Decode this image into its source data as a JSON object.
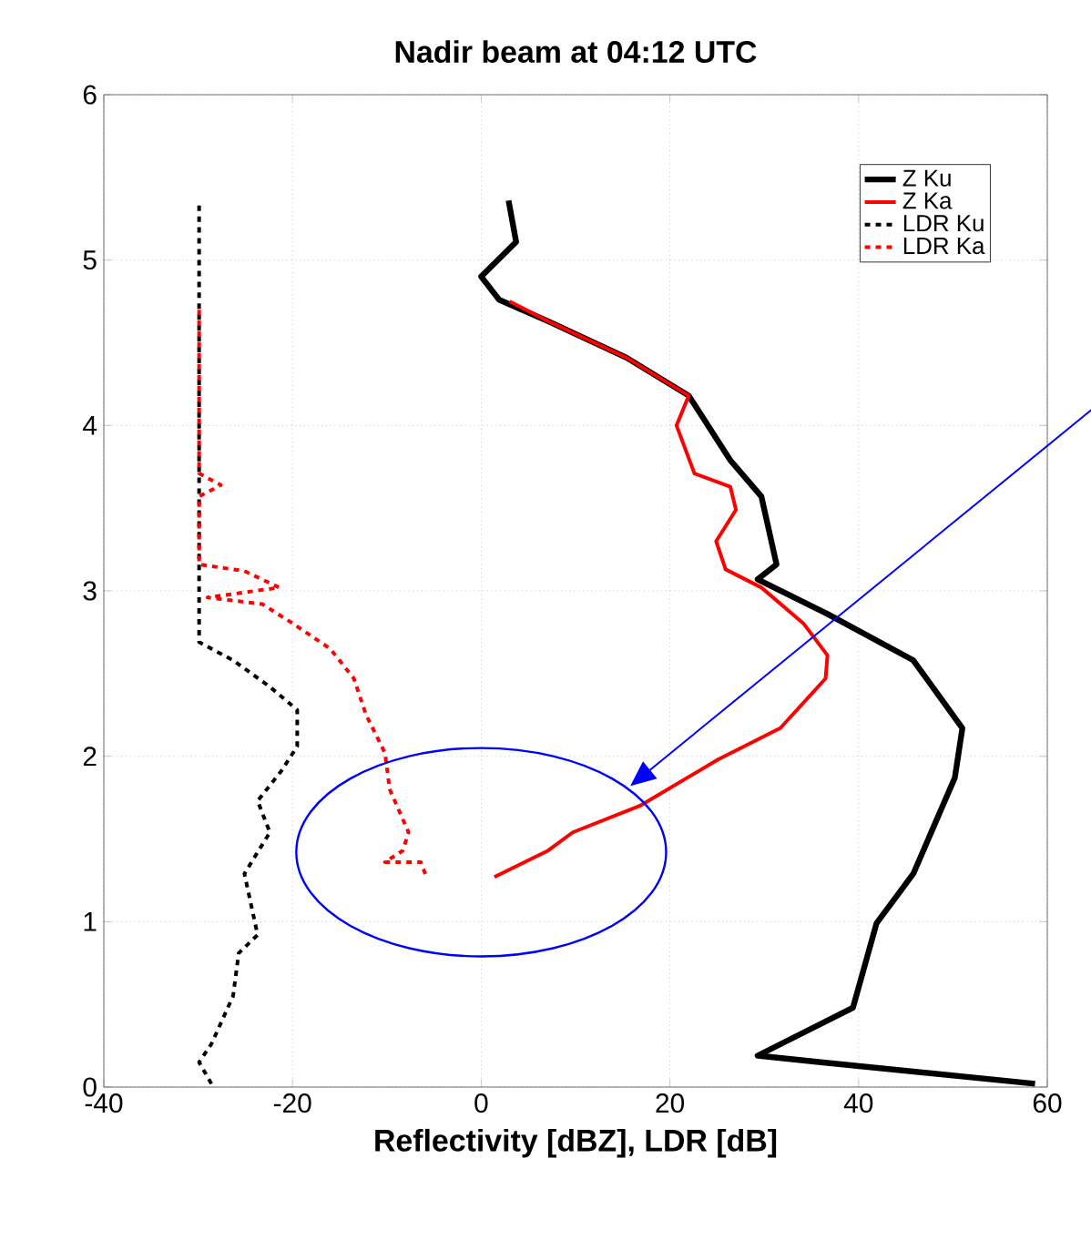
{
  "chart_data": {
    "type": "line",
    "title": "Nadir beam at 04:12 UTC",
    "xlabel": "Reflectivity [dBZ], LDR [dB]",
    "xlim": [
      -40,
      60
    ],
    "xticks": [
      -40,
      -20,
      0,
      20,
      40,
      60
    ],
    "ylim": [
      0,
      6
    ],
    "yticks": [
      0,
      1,
      2,
      3,
      4,
      5,
      6
    ],
    "grid": true,
    "legend": "top right",
    "series": [
      {
        "name": "Z Ku",
        "color": "#000000",
        "line_style": "solid",
        "x": [
          2.9,
          3.7,
          0,
          1.9,
          7.1,
          15.4,
          22,
          26.4,
          29.7,
          31.3,
          29.3,
          36.7,
          45.8,
          51,
          50.2,
          45.8,
          41.9,
          39.4,
          29.3,
          36,
          58.7
        ],
        "values": [
          5.36,
          5.11,
          4.9,
          4.76,
          4.63,
          4.41,
          4.18,
          3.79,
          3.57,
          3.16,
          3.07,
          2.86,
          2.58,
          2.17,
          1.87,
          1.29,
          0.99,
          0.48,
          0.19,
          0.15,
          0.02
        ]
      },
      {
        "name": "Z Ka",
        "color": "#ff0000",
        "line_style": "solid",
        "x": [
          3,
          7.1,
          15.4,
          22,
          20.7,
          22.6,
          26.4,
          27,
          24.9,
          25.9,
          29.7,
          34.2,
          36.7,
          36.5,
          31.7,
          25.1,
          16.8,
          9.7,
          7.1,
          1.4
        ],
        "values": [
          4.75,
          4.63,
          4.41,
          4.18,
          4.0,
          3.71,
          3.63,
          3.49,
          3.3,
          3.13,
          3.02,
          2.8,
          2.61,
          2.47,
          2.17,
          1.98,
          1.7,
          1.54,
          1.43,
          1.27
        ]
      },
      {
        "name": "LDR Ku",
        "color": "#000000",
        "line_style": "dashed",
        "x": [
          -29.9,
          -29.9,
          -26.3,
          -22.4,
          -19.5,
          -19.5,
          -21.2,
          -23.7,
          -22.4,
          -25.1,
          -23.7,
          -25.7,
          -26.3,
          -28.6,
          -29.9,
          -28.6
        ],
        "values": [
          5.33,
          2.69,
          2.58,
          2.42,
          2.28,
          2.06,
          1.91,
          1.73,
          1.54,
          1.29,
          0.92,
          0.81,
          0.55,
          0.26,
          0.15,
          0.02
        ]
      },
      {
        "name": "LDR Ka",
        "color": "#ff0000",
        "line_style": "dashed",
        "x": [
          -29.9,
          -29.9,
          -27.6,
          -29.9,
          -29.9,
          -25.1,
          -21.4,
          -29,
          -23.2,
          -19.9,
          -16,
          -13.5,
          -12.2,
          -10.2,
          -9.7,
          -7.7,
          -8.3,
          -10.2,
          -6.4,
          -5.8
        ],
        "values": [
          4.7,
          3.71,
          3.64,
          3.57,
          3.16,
          3.12,
          3.02,
          2.96,
          2.92,
          2.8,
          2.65,
          2.47,
          2.25,
          2.02,
          1.8,
          1.54,
          1.43,
          1.36,
          1.36,
          1.27
        ]
      }
    ]
  }
}
